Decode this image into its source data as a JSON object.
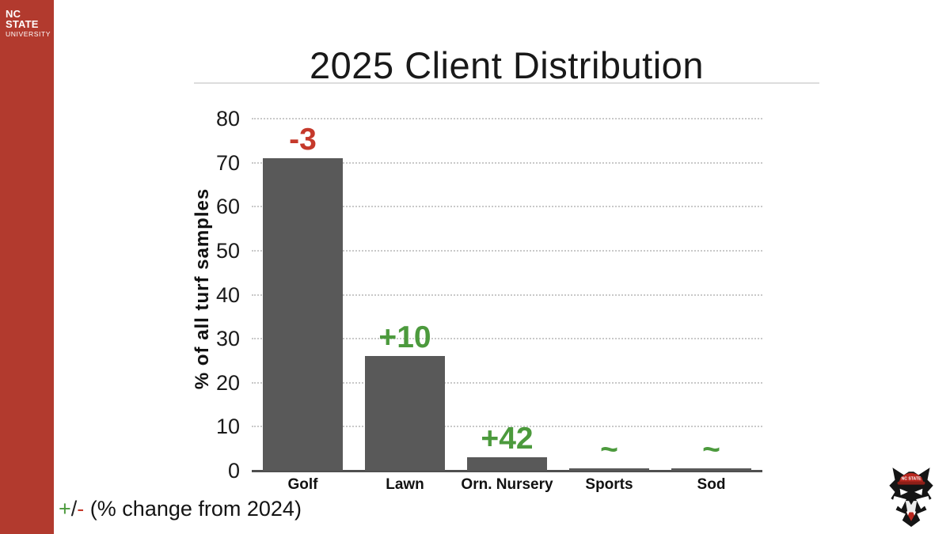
{
  "brand": {
    "logo_line1": "NC STATE",
    "logo_line2": "UNIVERSITY",
    "sidebar_color": "#b23a2e"
  },
  "slide": {
    "title": "2025 Client Distribution"
  },
  "chart_data": {
    "type": "bar",
    "title": "2025 Client Distribution",
    "categories": [
      "Golf",
      "Lawn",
      "Orn. Nursery",
      "Sports",
      "Sod"
    ],
    "values": [
      71,
      26,
      3,
      0.5,
      0.5
    ],
    "annotations": [
      {
        "label": "-3",
        "color": "#c5392b"
      },
      {
        "label": "+10",
        "color": "#4c9a3d"
      },
      {
        "label": "+42",
        "color": "#4c9a3d"
      },
      {
        "label": "~",
        "color": "#4c9a3d"
      },
      {
        "label": "~",
        "color": "#4c9a3d"
      }
    ],
    "xlabel": "",
    "ylabel": "% of all turf samples",
    "ylim": [
      0,
      80
    ],
    "yticks": [
      0,
      10,
      20,
      30,
      40,
      50,
      60,
      70,
      80
    ],
    "grid": "horizontal-dotted",
    "legend": null,
    "bar_color": "#595959",
    "gridline_color": "#c9c9c9",
    "baseline_color": "#4f4f4f"
  },
  "caption": {
    "plus": "+",
    "slash": "/",
    "minus": "-",
    "rest": " (% change from 2024)",
    "plus_color": "#4c9a3d",
    "slash_color": "#222222",
    "minus_color": "#c5392b",
    "text_color": "#141414"
  },
  "mascot": {
    "icon": "nc-state-wolfpack-logo"
  }
}
